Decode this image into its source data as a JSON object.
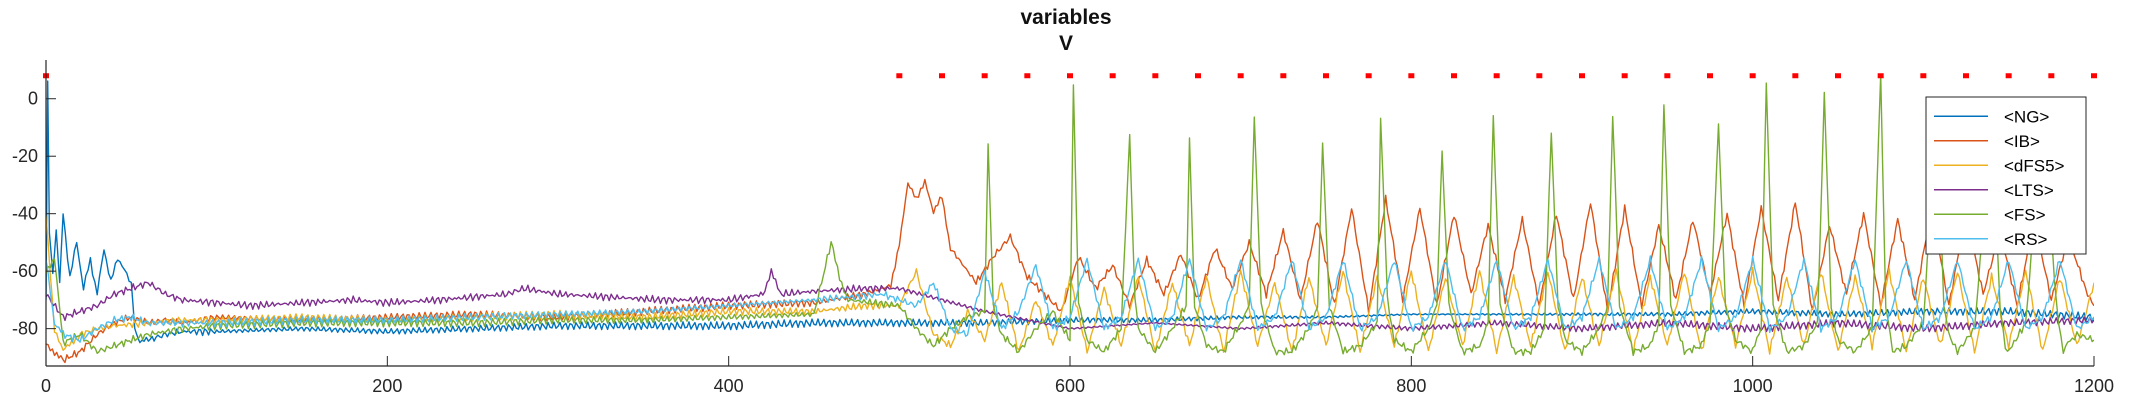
{
  "chart_data": {
    "type": "line",
    "title": "variables",
    "subtitle": "V",
    "xlabel": "",
    "ylabel": "",
    "xlim": [
      0,
      1200
    ],
    "ylim": [
      -93,
      10
    ],
    "xticks": [
      0,
      200,
      400,
      600,
      800,
      1000,
      1200
    ],
    "yticks": [
      0,
      -20,
      -40,
      -60,
      -80
    ],
    "grid": false,
    "legend_position": "top-right",
    "series": [
      {
        "name": "<NG>",
        "color": "#0072BD",
        "x": [
          0,
          1,
          2,
          4,
          6,
          8,
          10,
          14,
          18,
          22,
          26,
          30,
          34,
          38,
          42,
          46,
          50,
          52,
          55,
          60,
          70,
          80,
          100,
          150,
          200,
          250,
          300,
          350,
          400,
          450,
          500,
          550,
          600,
          650,
          700,
          750,
          800,
          850,
          900,
          950,
          1000,
          1050,
          1100,
          1150,
          1200
        ],
        "y": [
          -70,
          5,
          -48,
          -60,
          -45,
          -65,
          -40,
          -62,
          -50,
          -66,
          -56,
          -68,
          -52,
          -64,
          -55,
          -60,
          -64,
          -80,
          -85,
          -84,
          -82,
          -81,
          -81,
          -80,
          -81,
          -80,
          -79,
          -79,
          -79,
          -78,
          -78,
          -78,
          -77,
          -77,
          -76,
          -76,
          -75,
          -75,
          -75,
          -75,
          -74,
          -75,
          -74,
          -74,
          -76
        ]
      },
      {
        "name": "<IB>",
        "color": "#D95319",
        "x": [
          0,
          5,
          10,
          20,
          30,
          40,
          50,
          60,
          70,
          80,
          100,
          150,
          200,
          250,
          300,
          350,
          400,
          450,
          480,
          495,
          500,
          505,
          510,
          515,
          520,
          525,
          530,
          545,
          555,
          565,
          575,
          585,
          595,
          605,
          615,
          625,
          635,
          645,
          655,
          665,
          675,
          685,
          695,
          705,
          715,
          725,
          735,
          745,
          755,
          765,
          775,
          785,
          795,
          805,
          815,
          825,
          835,
          845,
          855,
          865,
          875,
          885,
          895,
          905,
          915,
          925,
          935,
          945,
          955,
          965,
          975,
          985,
          995,
          1005,
          1015,
          1025,
          1035,
          1045,
          1055,
          1065,
          1075,
          1085,
          1095,
          1105,
          1115,
          1125,
          1135,
          1145,
          1155,
          1165,
          1175,
          1185,
          1195,
          1200
        ],
        "y": [
          -85,
          -88,
          -91,
          -88,
          -82,
          -78,
          -76,
          -78,
          -77,
          -78,
          -76,
          -77,
          -76,
          -75,
          -76,
          -74,
          -72,
          -71,
          -68,
          -65,
          -50,
          -30,
          -35,
          -28,
          -40,
          -34,
          -52,
          -64,
          -55,
          -48,
          -62,
          -68,
          -74,
          -55,
          -66,
          -58,
          -72,
          -56,
          -68,
          -54,
          -70,
          -52,
          -66,
          -50,
          -68,
          -46,
          -70,
          -42,
          -72,
          -38,
          -74,
          -35,
          -70,
          -38,
          -72,
          -40,
          -68,
          -44,
          -70,
          -42,
          -72,
          -40,
          -70,
          -36,
          -74,
          -38,
          -72,
          -44,
          -70,
          -42,
          -68,
          -40,
          -72,
          -38,
          -70,
          -36,
          -74,
          -44,
          -68,
          -40,
          -72,
          -42,
          -70,
          -38,
          -72,
          -40,
          -68,
          -46,
          -72,
          -42,
          -70,
          -48,
          -66,
          -72
        ]
      },
      {
        "name": "<dFS5>",
        "color": "#EDB120",
        "x": [
          0,
          5,
          10,
          15,
          20,
          30,
          40,
          60,
          80,
          100,
          150,
          200,
          250,
          300,
          350,
          400,
          450,
          480,
          500,
          510,
          520,
          530,
          540,
          550,
          560,
          570,
          580,
          590,
          600,
          610,
          620,
          630,
          640,
          650,
          660,
          670,
          680,
          690,
          700,
          710,
          720,
          730,
          740,
          750,
          760,
          770,
          780,
          790,
          800,
          810,
          820,
          830,
          840,
          850,
          860,
          870,
          880,
          890,
          900,
          910,
          920,
          930,
          940,
          950,
          960,
          970,
          980,
          990,
          1000,
          1010,
          1020,
          1030,
          1040,
          1050,
          1060,
          1070,
          1080,
          1090,
          1100,
          1110,
          1120,
          1130,
          1140,
          1150,
          1160,
          1170,
          1180,
          1190,
          1200
        ],
        "y": [
          -40,
          -80,
          -88,
          -85,
          -82,
          -80,
          -79,
          -78,
          -77,
          -77,
          -76,
          -77,
          -76,
          -75,
          -76,
          -74,
          -74,
          -72,
          -72,
          -60,
          -82,
          -86,
          -74,
          -84,
          -64,
          -88,
          -70,
          -86,
          -62,
          -88,
          -66,
          -86,
          -62,
          -88,
          -64,
          -86,
          -62,
          -88,
          -60,
          -86,
          -64,
          -88,
          -62,
          -86,
          -60,
          -88,
          -62,
          -86,
          -60,
          -88,
          -62,
          -86,
          -60,
          -88,
          -62,
          -86,
          -60,
          -88,
          -62,
          -86,
          -60,
          -88,
          -62,
          -86,
          -60,
          -88,
          -62,
          -86,
          -60,
          -88,
          -62,
          -86,
          -60,
          -88,
          -62,
          -86,
          -60,
          -88,
          -62,
          -86,
          -60,
          -88,
          -62,
          -86,
          -60,
          -88,
          -62,
          -86,
          -64
        ]
      },
      {
        "name": "<LTS>",
        "color": "#7E2F8E",
        "x": [
          0,
          10,
          20,
          30,
          40,
          50,
          60,
          70,
          80,
          100,
          120,
          150,
          180,
          200,
          230,
          250,
          270,
          280,
          300,
          330,
          360,
          400,
          420,
          425,
          430,
          450,
          480,
          500,
          550,
          600,
          650,
          700,
          750,
          800,
          850,
          900,
          950,
          1000,
          1050,
          1100,
          1150,
          1200
        ],
        "y": [
          -68,
          -76,
          -74,
          -72,
          -68,
          -66,
          -64,
          -68,
          -70,
          -71,
          -72,
          -71,
          -70,
          -71,
          -70,
          -69,
          -68,
          -66,
          -68,
          -69,
          -70,
          -70,
          -68,
          -60,
          -68,
          -67,
          -66,
          -66,
          -74,
          -80,
          -78,
          -80,
          -78,
          -80,
          -78,
          -80,
          -78,
          -80,
          -78,
          -80,
          -78,
          -77
        ]
      },
      {
        "name": "<FS>",
        "color": "#77AC30",
        "x": [
          0,
          5,
          10,
          20,
          30,
          40,
          50,
          60,
          80,
          100,
          150,
          200,
          250,
          300,
          350,
          400,
          450,
          460,
          465,
          470,
          500,
          510,
          520,
          530,
          540,
          550,
          552,
          555,
          560,
          570,
          580,
          590,
          600,
          602,
          605,
          610,
          620,
          630,
          635,
          638,
          640,
          650,
          660,
          668,
          670,
          673,
          680,
          690,
          700,
          705,
          708,
          712,
          720,
          730,
          740,
          745,
          748,
          752,
          760,
          770,
          780,
          782,
          786,
          790,
          800,
          810,
          815,
          818,
          822,
          830,
          840,
          845,
          848,
          852,
          860,
          870,
          878,
          882,
          886,
          890,
          900,
          910,
          915,
          918,
          922,
          930,
          940,
          945,
          948,
          952,
          960,
          970,
          975,
          980,
          984,
          990,
          1000,
          1005,
          1008,
          1012,
          1020,
          1030,
          1038,
          1042,
          1046,
          1050,
          1060,
          1070,
          1075,
          1078,
          1082,
          1090,
          1100,
          1108,
          1112,
          1116,
          1120,
          1130,
          1140,
          1145,
          1148,
          1152,
          1160,
          1170,
          1178,
          1182,
          1186,
          1190,
          1200
        ],
        "y": [
          -60,
          -55,
          -85,
          -82,
          -88,
          -86,
          -84,
          -82,
          -80,
          -79,
          -78,
          -78,
          -78,
          -77,
          -77,
          -76,
          -75,
          -50,
          -62,
          -70,
          -72,
          -80,
          -86,
          -80,
          -76,
          -74,
          -15,
          -72,
          -82,
          -88,
          -80,
          -74,
          -84,
          4,
          -70,
          -84,
          -88,
          -80,
          -12,
          -70,
          -80,
          -88,
          -80,
          -72,
          -14,
          -72,
          -86,
          -88,
          -78,
          -72,
          -6,
          -72,
          -88,
          -88,
          -80,
          -72,
          -16,
          -72,
          -88,
          -86,
          -78,
          -6,
          -70,
          -84,
          -88,
          -80,
          -72,
          -18,
          -72,
          -88,
          -86,
          -78,
          -6,
          -72,
          -88,
          -88,
          -80,
          -12,
          -72,
          -84,
          -88,
          -80,
          -72,
          -6,
          -72,
          -88,
          -86,
          -78,
          -2,
          -72,
          -88,
          -86,
          -78,
          -8,
          -72,
          -84,
          -88,
          -80,
          5,
          -72,
          -88,
          -86,
          -78,
          2,
          -72,
          -84,
          -88,
          -80,
          8,
          -72,
          -88,
          -86,
          -78,
          -4,
          -72,
          -84,
          -88,
          -80,
          -10,
          -72,
          -88,
          -86,
          -78,
          -6,
          -72,
          -88,
          -84,
          -82,
          -84
        ]
      },
      {
        "name": "<RS>",
        "color": "#4DBEEE",
        "x": [
          0,
          5,
          10,
          20,
          30,
          40,
          50,
          60,
          70,
          80,
          100,
          150,
          200,
          250,
          300,
          350,
          400,
          450,
          490,
          500,
          510,
          520,
          530,
          540,
          550,
          560,
          570,
          580,
          590,
          600,
          610,
          620,
          630,
          640,
          650,
          660,
          670,
          680,
          690,
          700,
          710,
          720,
          730,
          740,
          750,
          760,
          770,
          780,
          790,
          800,
          810,
          820,
          830,
          840,
          850,
          860,
          870,
          880,
          890,
          900,
          910,
          920,
          930,
          940,
          950,
          960,
          970,
          980,
          990,
          1000,
          1010,
          1020,
          1030,
          1040,
          1050,
          1060,
          1070,
          1080,
          1090,
          1100,
          1110,
          1120,
          1130,
          1140,
          1150,
          1160,
          1170,
          1180,
          1190,
          1200
        ],
        "y": [
          -55,
          -78,
          -82,
          -84,
          -80,
          -77,
          -76,
          -78,
          -78,
          -78,
          -78,
          -77,
          -77,
          -76,
          -75,
          -74,
          -72,
          -70,
          -68,
          -70,
          -72,
          -64,
          -80,
          -82,
          -60,
          -80,
          -74,
          -58,
          -80,
          -76,
          -56,
          -80,
          -76,
          -56,
          -80,
          -76,
          -56,
          -80,
          -76,
          -56,
          -80,
          -76,
          -56,
          -80,
          -76,
          -56,
          -80,
          -76,
          -56,
          -80,
          -76,
          -56,
          -80,
          -76,
          -56,
          -80,
          -76,
          -56,
          -80,
          -76,
          -56,
          -80,
          -76,
          -56,
          -80,
          -76,
          -56,
          -80,
          -76,
          -56,
          -80,
          -76,
          -56,
          -80,
          -76,
          -56,
          -80,
          -76,
          -56,
          -80,
          -76,
          -56,
          -80,
          -76,
          -56,
          -80,
          -76,
          -56,
          -80,
          -76
        ]
      }
    ],
    "markers": {
      "color": "#FF0000",
      "y": 8,
      "x": [
        0,
        500,
        525,
        550,
        575,
        600,
        625,
        650,
        675,
        700,
        725,
        750,
        775,
        800,
        825,
        850,
        875,
        900,
        925,
        950,
        975,
        1000,
        1025,
        1050,
        1075,
        1100,
        1125,
        1150,
        1175,
        1200
      ]
    }
  }
}
